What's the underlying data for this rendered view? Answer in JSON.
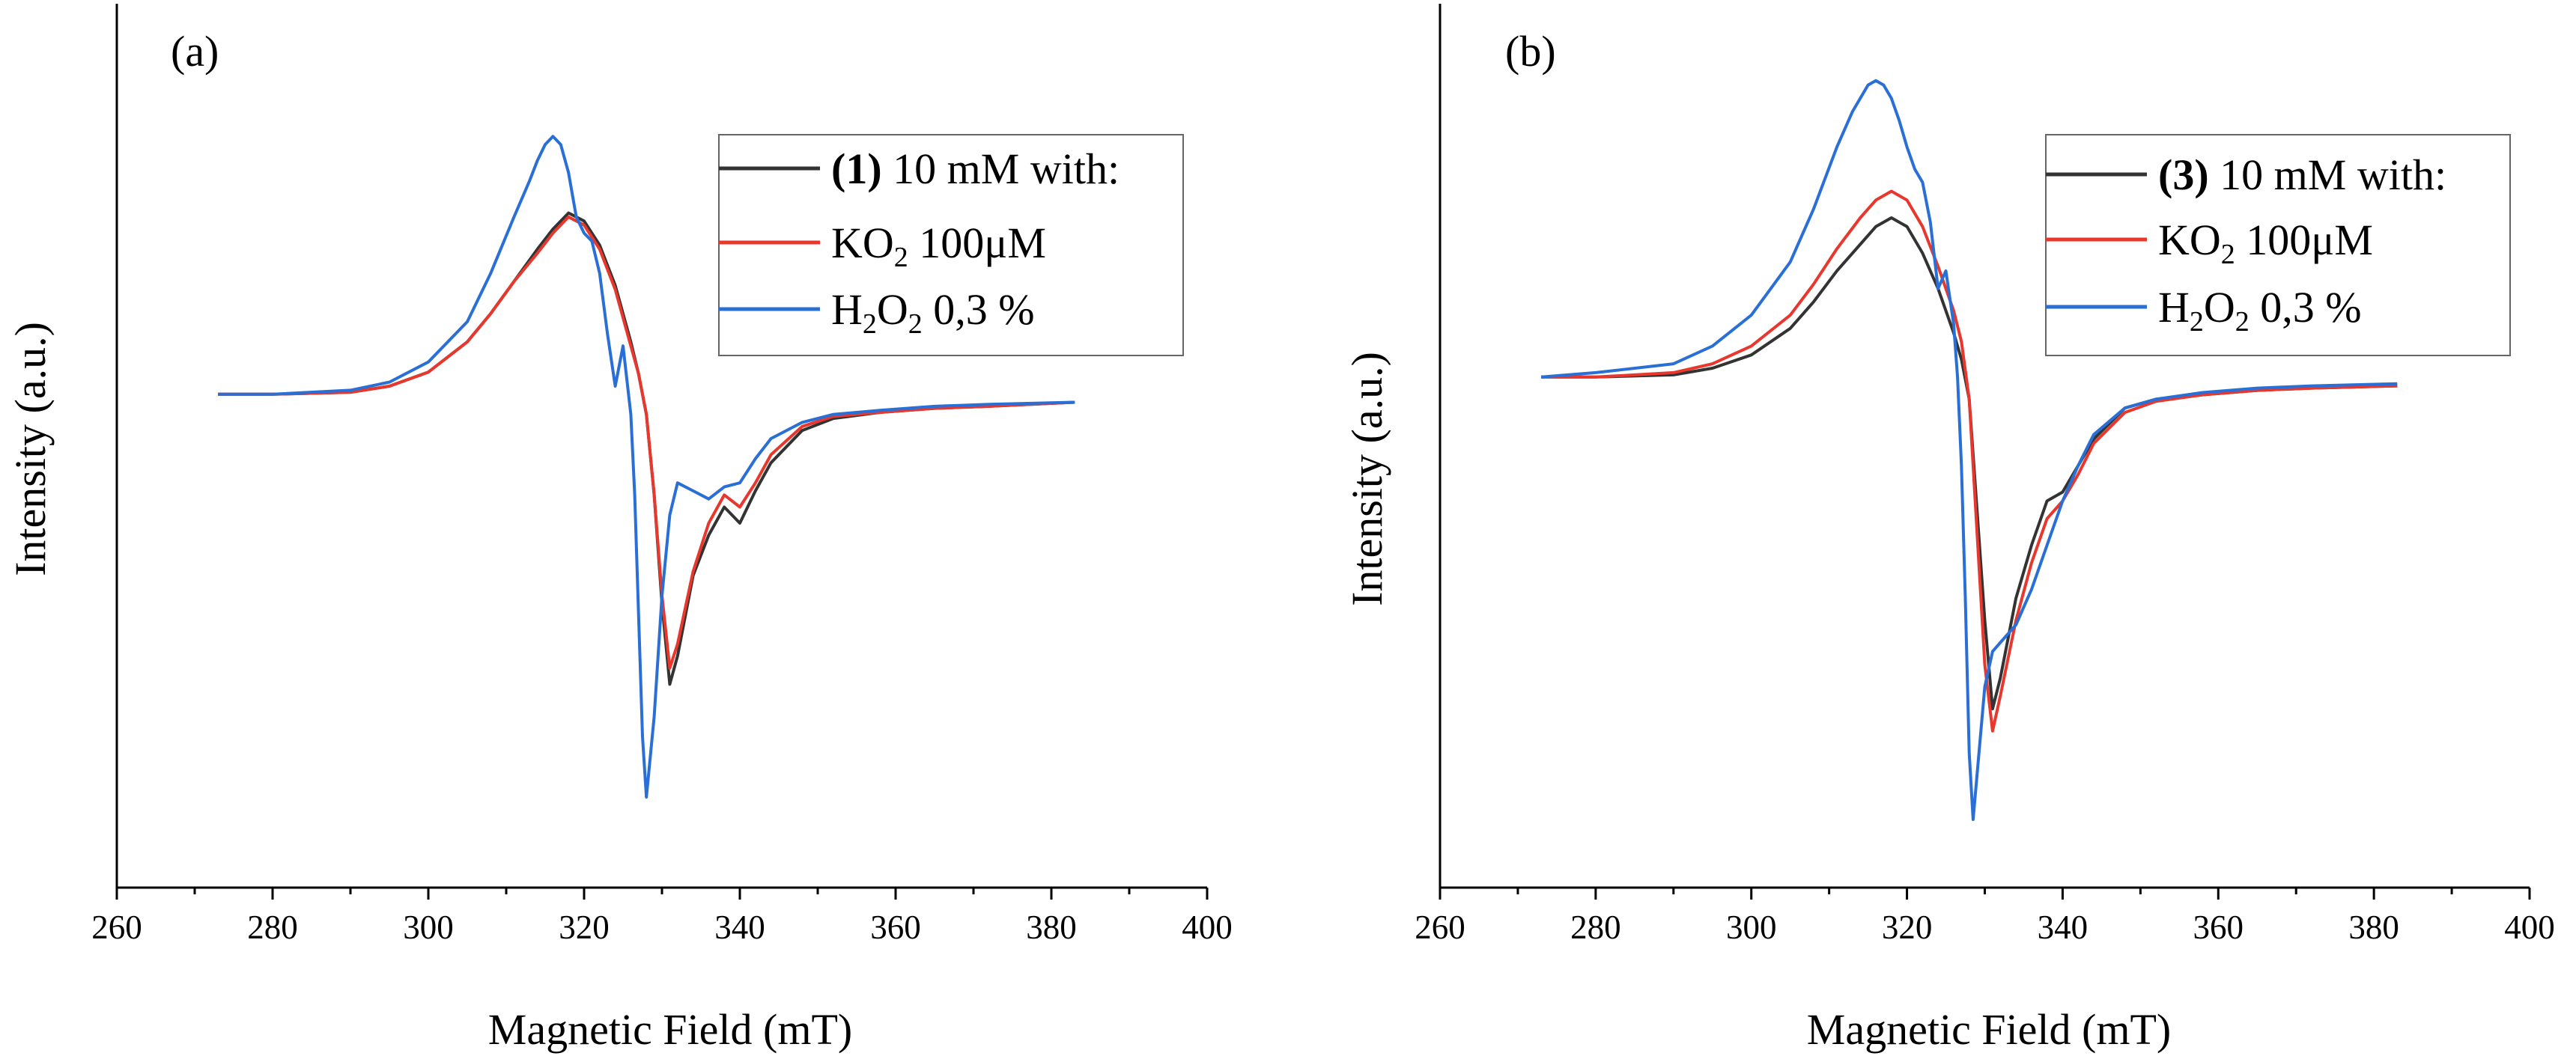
{
  "chart_data": [
    {
      "type": "line",
      "panel_label": "(a)",
      "xlabel": "Magnetic Field (mT)",
      "ylabel": "Intensity (a.u.)",
      "xlim": [
        260,
        400
      ],
      "xticks": [
        "260",
        "280",
        "300",
        "320",
        "340",
        "360",
        "380",
        "400"
      ],
      "ylim": [
        -1.0,
        0.7
      ],
      "legend": {
        "position": "top-right",
        "compound": "(1)",
        "header_suffix": " 10 mM with:",
        "kobase": "KO",
        "kosub": "2",
        "kotail": " 100μM",
        "h1": "H",
        "hsub1": "2",
        "h2": "O",
        "hsub2": "2",
        "htail": " 0,3 %"
      },
      "series": [
        {
          "name": "(1) 10 mM with:",
          "color": "#333333",
          "x": [
            273,
            280,
            290,
            295,
            300,
            305,
            308,
            311,
            314,
            316,
            318,
            320,
            322,
            324,
            326,
            327,
            328,
            329,
            330,
            331,
            332,
            334,
            336,
            338,
            340,
            342,
            344,
            348,
            352,
            358,
            365,
            372,
            383
          ],
          "y": [
            0,
            0,
            0.005,
            0.02,
            0.055,
            0.13,
            0.2,
            0.28,
            0.36,
            0.41,
            0.45,
            0.43,
            0.37,
            0.27,
            0.13,
            0.05,
            -0.05,
            -0.25,
            -0.52,
            -0.72,
            -0.65,
            -0.45,
            -0.35,
            -0.28,
            -0.32,
            -0.24,
            -0.17,
            -0.09,
            -0.06,
            -0.045,
            -0.035,
            -0.03,
            -0.02
          ]
        },
        {
          "name": "KO2 100μM",
          "color": "#e8372d",
          "x": [
            273,
            280,
            290,
            295,
            300,
            305,
            308,
            311,
            314,
            316,
            318,
            320,
            322,
            324,
            326,
            327,
            328,
            329,
            330,
            331,
            332,
            334,
            336,
            338,
            340,
            342,
            344,
            348,
            352,
            358,
            365,
            372,
            383
          ],
          "y": [
            0,
            0,
            0.005,
            0.02,
            0.055,
            0.13,
            0.2,
            0.28,
            0.35,
            0.4,
            0.44,
            0.42,
            0.36,
            0.26,
            0.12,
            0.05,
            -0.05,
            -0.25,
            -0.5,
            -0.68,
            -0.62,
            -0.44,
            -0.32,
            -0.25,
            -0.28,
            -0.22,
            -0.15,
            -0.08,
            -0.055,
            -0.045,
            -0.035,
            -0.03,
            -0.02
          ]
        },
        {
          "name": "H2O2 0,3 %",
          "color": "#2a6fd6",
          "x": [
            273,
            280,
            290,
            295,
            300,
            305,
            308,
            311,
            313,
            314,
            315,
            316,
            317,
            318,
            319,
            320,
            321,
            322,
            323,
            324,
            325,
            326,
            326.5,
            327,
            327.5,
            328,
            329,
            330,
            331,
            332,
            334,
            336,
            338,
            340,
            342,
            344,
            348,
            352,
            358,
            365,
            372,
            383
          ],
          "y": [
            0,
            0,
            0.01,
            0.03,
            0.08,
            0.18,
            0.3,
            0.44,
            0.53,
            0.58,
            0.62,
            0.64,
            0.62,
            0.55,
            0.44,
            0.4,
            0.38,
            0.3,
            0.15,
            0.02,
            0.12,
            -0.05,
            -0.25,
            -0.55,
            -0.85,
            -1.0,
            -0.8,
            -0.5,
            -0.3,
            -0.22,
            -0.24,
            -0.26,
            -0.23,
            -0.22,
            -0.16,
            -0.11,
            -0.07,
            -0.05,
            -0.04,
            -0.03,
            -0.025,
            -0.02
          ]
        }
      ]
    },
    {
      "type": "line",
      "panel_label": "(b)",
      "xlabel": "Magnetic Field (mT)",
      "ylabel": "Intensity (a.u.)",
      "xlim": [
        260,
        400
      ],
      "xticks": [
        "260",
        "280",
        "300",
        "320",
        "340",
        "360",
        "380",
        "400"
      ],
      "ylim": [
        -1.0,
        0.7
      ],
      "legend": {
        "position": "top-right",
        "compound": "(3)",
        "header_suffix": " 10 mM with:",
        "kobase": "KO",
        "kosub": "2",
        "kotail": " 100μM",
        "h1": "H",
        "hsub1": "2",
        "h2": "O",
        "hsub2": "2",
        "htail": " 0,3 %"
      },
      "series": [
        {
          "name": "(3) 10 mM with:",
          "color": "#333333",
          "x": [
            273,
            280,
            290,
            295,
            300,
            305,
            308,
            311,
            314,
            316,
            318,
            320,
            322,
            324,
            326,
            327,
            328,
            329,
            330,
            331,
            332,
            334,
            336,
            338,
            340,
            342,
            344,
            348,
            352,
            358,
            365,
            372,
            383
          ],
          "y": [
            0,
            0,
            0.005,
            0.02,
            0.05,
            0.11,
            0.17,
            0.24,
            0.3,
            0.34,
            0.36,
            0.34,
            0.28,
            0.2,
            0.1,
            0.04,
            -0.05,
            -0.3,
            -0.55,
            -0.75,
            -0.68,
            -0.5,
            -0.38,
            -0.28,
            -0.26,
            -0.2,
            -0.14,
            -0.07,
            -0.05,
            -0.04,
            -0.03,
            -0.025,
            -0.02
          ]
        },
        {
          "name": "KO2 100μM",
          "color": "#e8372d",
          "x": [
            273,
            280,
            290,
            295,
            300,
            305,
            308,
            311,
            314,
            316,
            318,
            320,
            322,
            324,
            326,
            327,
            328,
            329,
            330,
            331,
            332,
            334,
            336,
            338,
            340,
            342,
            344,
            348,
            352,
            358,
            365,
            372,
            383
          ],
          "y": [
            0,
            0,
            0.01,
            0.03,
            0.07,
            0.14,
            0.21,
            0.29,
            0.36,
            0.4,
            0.42,
            0.4,
            0.34,
            0.25,
            0.15,
            0.08,
            -0.05,
            -0.35,
            -0.65,
            -0.8,
            -0.72,
            -0.55,
            -0.42,
            -0.32,
            -0.28,
            -0.22,
            -0.15,
            -0.08,
            -0.055,
            -0.04,
            -0.03,
            -0.025,
            -0.02
          ]
        },
        {
          "name": "H2O2 0,3 %",
          "color": "#2a6fd6",
          "x": [
            273,
            280,
            290,
            295,
            300,
            305,
            308,
            311,
            313,
            314,
            315,
            316,
            317,
            318,
            319,
            320,
            321,
            322,
            323,
            324,
            325,
            326,
            326.5,
            327,
            327.5,
            328,
            328.5,
            329,
            330,
            331,
            332,
            334,
            336,
            338,
            340,
            342,
            344,
            348,
            352,
            358,
            365,
            372,
            383
          ],
          "y": [
            0,
            0.01,
            0.03,
            0.07,
            0.14,
            0.26,
            0.38,
            0.52,
            0.6,
            0.63,
            0.66,
            0.67,
            0.66,
            0.63,
            0.58,
            0.52,
            0.47,
            0.44,
            0.35,
            0.2,
            0.24,
            0.12,
            0.0,
            -0.2,
            -0.5,
            -0.85,
            -1.0,
            -0.9,
            -0.7,
            -0.62,
            -0.6,
            -0.56,
            -0.48,
            -0.38,
            -0.28,
            -0.2,
            -0.13,
            -0.07,
            -0.05,
            -0.035,
            -0.025,
            -0.02,
            -0.015
          ]
        }
      ]
    }
  ]
}
